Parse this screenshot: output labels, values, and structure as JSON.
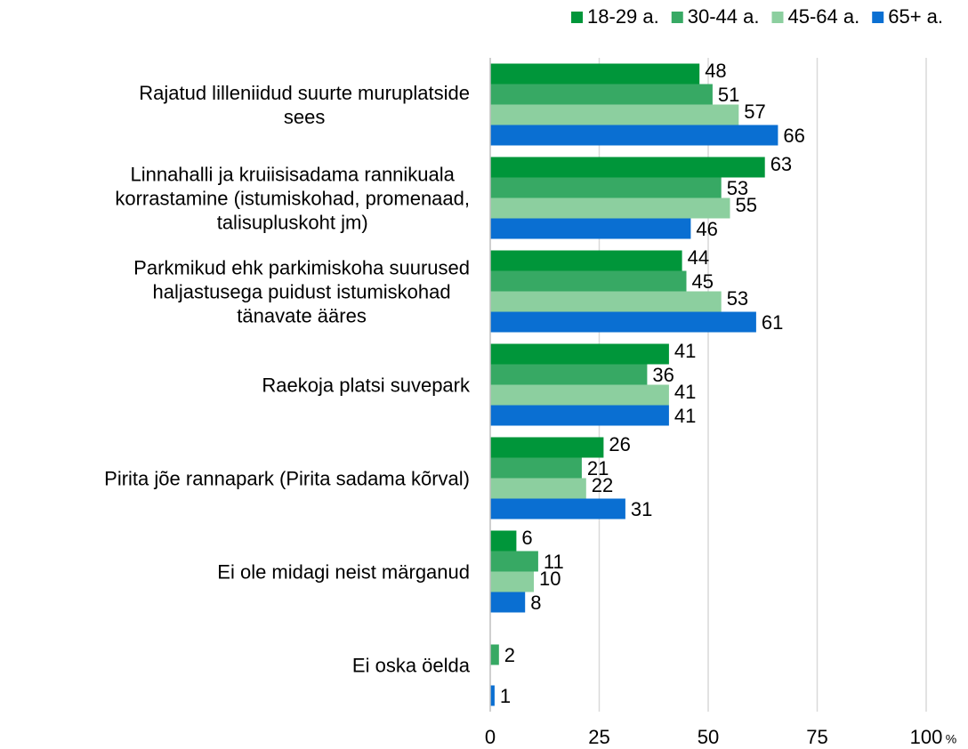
{
  "chart_data": {
    "type": "hbar",
    "categories": [
      "Rajatud lilleniidud suurte muruplatside\nsees",
      "Linnahalli ja kruiisisadama rannikuala\nkorrastamine (istumiskohad, promenaad,\ntalisupluskoht jm)",
      "Parkmikud ehk parkimiskoha suurused\nhaljastusega puidust istumiskohad\ntänavate ääres",
      "Raekoja platsi suvepark",
      "Pirita jõe rannapark (Pirita sadama kõrval)",
      "Ei ole midagi neist märganud",
      "Ei oska öelda"
    ],
    "series": [
      {
        "name": "18-29 a.",
        "color": "#00963a",
        "values": [
          48,
          63,
          44,
          41,
          26,
          6,
          null
        ]
      },
      {
        "name": "30-44 a.",
        "color": "#37a964",
        "values": [
          51,
          53,
          45,
          36,
          21,
          11,
          2
        ]
      },
      {
        "name": "45-64 a.",
        "color": "#8ccf9f",
        "values": [
          57,
          55,
          53,
          41,
          22,
          10,
          null
        ]
      },
      {
        "name": "65+ a.",
        "color": "#0a6fd2",
        "values": [
          66,
          46,
          61,
          41,
          31,
          8,
          1
        ]
      }
    ],
    "xlim": [
      0,
      100
    ],
    "xticks": [
      0,
      25,
      50,
      75,
      100
    ],
    "x_unit": "%",
    "grid": true,
    "legend": "top-right"
  }
}
